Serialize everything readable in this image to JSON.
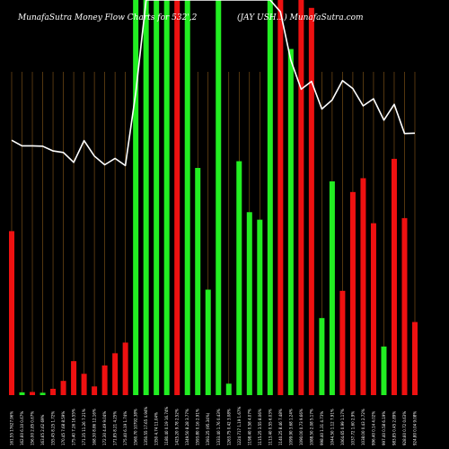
{
  "chart_data": {
    "type": "bar",
    "title": "MunafaSutra  Money Flow  Charts for 532',2",
    "subtitle": "(JAY USH...)  MunafaSutra.com",
    "ylim": [
      0,
      100
    ],
    "grid": "vertical lines",
    "colors": {
      "background": "#000000",
      "up": "#22ee22",
      "down": "#ee1111",
      "line": "#ffffff",
      "grid": "#8a5a1a"
    },
    "categories": [
      "161.55 17627.96%",
      "162.60 6.10 0.67%",
      "156.00 2.85 0.67%",
      "163.65 2.62 69%",
      "155.45 8.25 1.72%",
      "170.45 7.68 8.59%",
      "175.40 7.26 16.55%",
      "171.35 11.26 7.21%",
      "168.30 8.86 12.16%",
      "172.30 4.49 9.04%",
      "171.85 8.21 4.25%",
      "175.40 6.19 1.74%",
      "1560.70 10792.38%",
      "1350.55 17.65 4.94%",
      "1350 4.74 11.04%",
      "1180.40 0.19 16.74%",
      "1425.20 9.78 2.52%",
      "1349.50 8.28 3.77%",
      "1593.80 0.16 2.91%",
      "1393.25 (95.34%)",
      "1333.40 1.76 0.43%",
      "1263.75 0.42 3.08%",
      "1224 717 1.19 1.67%",
      "1198.40 0.58 4.07%",
      "1115.25 3.55 8.06%",
      "1113.40 0.55 6.03%",
      "1140.25 8.46 7.48%",
      "1099.90 3.68 1.24%",
      "1090.00 0.73 9.66%",
      "1088.50 2.08 5.17%",
      "998.40 1.31 4.73%",
      "1044.50 1.12 7.91%",
      "1064.65 0.99 1.17%",
      "1037.72 1.60 2.9%",
      "1038.00 0.43 2.72%",
      "996.40 0.14 4.02%",
      "997.40 0.58 6.19%",
      "983.85 0.45 2.89%",
      "928.60 0.72 0.63%",
      "924.80 0.04 9.08%"
    ],
    "series": [
      {
        "type": "bar",
        "values": [
          41.5,
          0.7,
          0.8,
          0.6,
          1.6,
          3.6,
          8.6,
          5.4,
          2.2,
          7.5,
          10.6,
          13.3,
          100,
          100,
          100,
          100,
          100,
          100,
          57.5,
          26.7,
          100,
          2.9,
          59.2,
          46.3,
          44.4,
          100,
          100,
          87.6,
          100,
          98.0,
          19.5,
          54.1,
          26.4,
          51.4,
          54.9,
          43.5,
          12.3,
          59.8,
          44.8,
          18.5
        ],
        "directions": [
          "down",
          "up",
          "down",
          "up",
          "down",
          "down",
          "down",
          "down",
          "down",
          "down",
          "down",
          "down",
          "up",
          "up",
          "up",
          "up",
          "down",
          "up",
          "up",
          "up",
          "up",
          "up",
          "up",
          "up",
          "up",
          "up",
          "down",
          "up",
          "down",
          "down",
          "up",
          "up",
          "down",
          "down",
          "down",
          "down",
          "up",
          "down",
          "down",
          "down"
        ]
      },
      {
        "type": "line",
        "values": [
          64.5,
          63.1,
          63.1,
          63.0,
          61.8,
          61.4,
          58.9,
          64.4,
          60.5,
          58.3,
          59.9,
          58.1,
          76.6,
          100.0,
          100.0,
          100.0,
          100.0,
          100.0,
          100.0,
          100.0,
          100.0,
          100.0,
          100.0,
          100.0,
          100.0,
          100.0,
          97.0,
          84.8,
          77.4,
          79.4,
          72.4,
          74.7,
          79.6,
          77.6,
          73.2,
          75.0,
          69.6,
          73.6,
          66.2,
          66.3
        ]
      }
    ]
  }
}
